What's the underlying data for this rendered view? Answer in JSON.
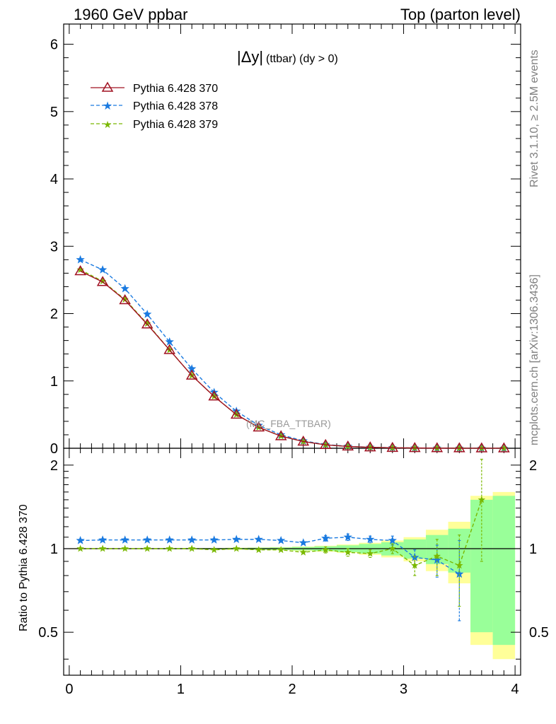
{
  "header": {
    "left": "1960 GeV ppbar",
    "right": "Top (parton level)"
  },
  "side": {
    "rivet": "Rivet 3.1.10, ≥ 2.5M events",
    "mcplots": "mcplots.cern.ch [arXiv:1306.3436]"
  },
  "plot_title": {
    "main": "|Δy|",
    "sub": "(ttbar) (dy > 0)"
  },
  "watermark": "(MC_FBA_TTBAR)",
  "ratio_ylabel": "Ratio to Pythia 6.428 370",
  "colors": {
    "s370": "#a01020",
    "s378": "#1a7ae0",
    "s379": "#7ab800",
    "band_yellow": "#ffff99",
    "band_green": "#99ff99"
  },
  "chart_data": [
    {
      "type": "line",
      "xlim": [
        -0.05,
        4.05
      ],
      "ylim": [
        0,
        6.3
      ],
      "xticks": [
        0,
        1,
        2,
        3,
        4
      ],
      "yticks": [
        0,
        1,
        2,
        3,
        4,
        5,
        6
      ],
      "ytick_labels": [
        "0",
        "1",
        "2",
        "3",
        "4",
        "5",
        "6"
      ],
      "legend_position": "top-left",
      "x": [
        0.1,
        0.3,
        0.5,
        0.7,
        0.9,
        1.1,
        1.3,
        1.5,
        1.7,
        1.9,
        2.1,
        2.3,
        2.5,
        2.7,
        2.9,
        3.1,
        3.3,
        3.5,
        3.7,
        3.9
      ],
      "series": [
        {
          "name": "Pythia 6.428 370",
          "marker": "triangle",
          "style": "solid",
          "values": [
            2.63,
            2.47,
            2.2,
            1.84,
            1.46,
            1.08,
            0.77,
            0.5,
            0.31,
            0.18,
            0.1,
            0.05,
            0.027,
            0.014,
            0.007,
            0.004,
            0.002,
            0.001,
            0.0005,
            0.0002
          ]
        },
        {
          "name": "Pythia 6.428 378",
          "marker": "star",
          "style": "dashed",
          "values": [
            2.8,
            2.65,
            2.37,
            1.99,
            1.58,
            1.18,
            0.83,
            0.55,
            0.34,
            0.2,
            0.11,
            0.055,
            0.03,
            0.015,
            0.0075,
            0.0037,
            0.0018,
            0.0008,
            0.0004,
            0.0002
          ]
        },
        {
          "name": "Pythia 6.428 379",
          "marker": "star",
          "style": "dashed",
          "values": [
            2.65,
            2.48,
            2.21,
            1.85,
            1.46,
            1.08,
            0.77,
            0.5,
            0.31,
            0.18,
            0.1,
            0.05,
            0.027,
            0.014,
            0.007,
            0.004,
            0.002,
            0.001,
            0.0005,
            0.0002
          ]
        }
      ]
    },
    {
      "type": "line",
      "ylabel": "Ratio to Pythia 6.428 370",
      "xlim": [
        -0.05,
        4.05
      ],
      "ylim": [
        0.35,
        2.3
      ],
      "log_y": true,
      "xticks": [
        0,
        1,
        2,
        3,
        4
      ],
      "xtick_labels": [
        "0",
        "1",
        "2",
        "3",
        "4"
      ],
      "yticks": [
        0.5,
        1,
        2
      ],
      "ytick_labels": [
        "0.5",
        "1",
        "2"
      ],
      "x": [
        0.1,
        0.3,
        0.5,
        0.7,
        0.9,
        1.1,
        1.3,
        1.5,
        1.7,
        1.9,
        2.1,
        2.3,
        2.5,
        2.7,
        2.9,
        3.1,
        3.3,
        3.5,
        3.7
      ],
      "band_yellow_half": [
        0.004,
        0.004,
        0.004,
        0.004,
        0.005,
        0.005,
        0.006,
        0.008,
        0.01,
        0.013,
        0.018,
        0.025,
        0.035,
        0.05,
        0.07,
        0.1,
        0.17,
        0.25,
        0.55,
        0.6
      ],
      "band_green_half": [
        0.003,
        0.003,
        0.003,
        0.003,
        0.004,
        0.004,
        0.005,
        0.006,
        0.008,
        0.01,
        0.014,
        0.02,
        0.028,
        0.04,
        0.055,
        0.08,
        0.12,
        0.18,
        0.5,
        0.55
      ],
      "band_x_edges": [
        0.0,
        0.2,
        0.4,
        0.6,
        0.8,
        1.0,
        1.2,
        1.4,
        1.6,
        1.8,
        2.0,
        2.2,
        2.4,
        2.6,
        2.8,
        3.0,
        3.2,
        3.4,
        3.6,
        3.8,
        4.0
      ],
      "series": [
        {
          "name": "Pythia 6.428 378",
          "values": [
            1.07,
            1.075,
            1.075,
            1.075,
            1.075,
            1.075,
            1.075,
            1.08,
            1.08,
            1.07,
            1.05,
            1.09,
            1.1,
            1.08,
            1.07,
            0.93,
            0.91,
            0.81,
            null
          ],
          "err": [
            0.005,
            0.005,
            0.005,
            0.005,
            0.006,
            0.006,
            0.007,
            0.01,
            0.012,
            0.015,
            0.02,
            0.025,
            0.03,
            0.03,
            0.04,
            0.06,
            0.12,
            0.26,
            null
          ]
        },
        {
          "name": "Pythia 6.428 379",
          "values": [
            1.0,
            1.0,
            1.0,
            1.0,
            1.0,
            1.0,
            0.99,
            1.0,
            0.99,
            0.99,
            0.97,
            0.99,
            0.97,
            0.96,
            1.0,
            0.87,
            0.94,
            0.87,
            1.5
          ],
          "err": [
            0.005,
            0.005,
            0.005,
            0.005,
            0.006,
            0.006,
            0.007,
            0.01,
            0.012,
            0.015,
            0.02,
            0.025,
            0.03,
            0.03,
            0.04,
            0.07,
            0.14,
            0.25,
            0.6
          ]
        }
      ]
    }
  ]
}
